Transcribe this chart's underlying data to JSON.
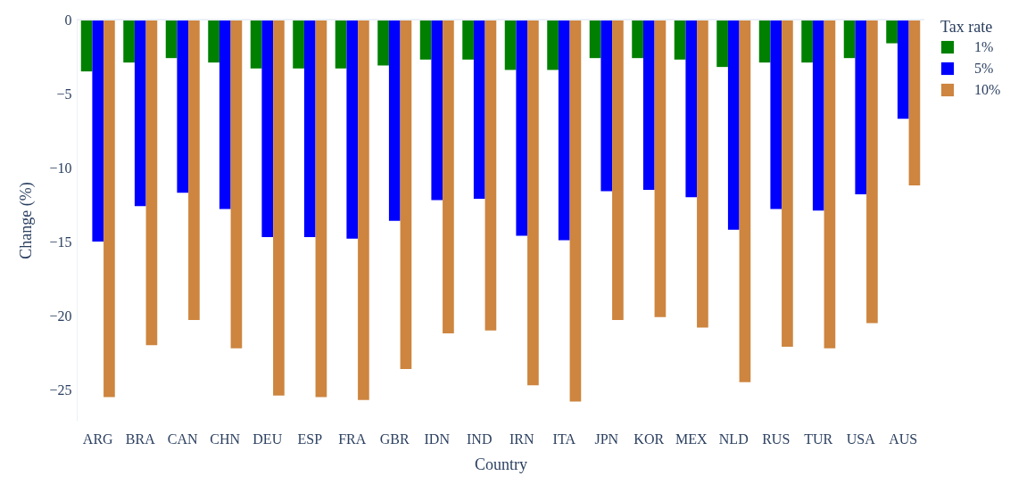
{
  "chart_data": {
    "type": "bar",
    "xlabel": "Country",
    "ylabel": "Change (%)",
    "legend_title": "Tax rate",
    "categories": [
      "ARG",
      "BRA",
      "CAN",
      "CHN",
      "DEU",
      "ESP",
      "FRA",
      "GBR",
      "IDN",
      "IND",
      "IRN",
      "ITA",
      "JPN",
      "KOR",
      "MEX",
      "NLD",
      "RUS",
      "TUR",
      "USA",
      "AUS"
    ],
    "series": [
      {
        "name": "1%",
        "color": "#008000",
        "values": [
          -3.5,
          -2.9,
          -2.6,
          -2.9,
          -3.3,
          -3.3,
          -3.3,
          -3.1,
          -2.7,
          -2.7,
          -3.4,
          -3.4,
          -2.6,
          -2.6,
          -2.7,
          -3.2,
          -2.9,
          -2.9,
          -2.6,
          -1.6
        ]
      },
      {
        "name": "5%",
        "color": "#0000ff",
        "values": [
          -15.0,
          -12.6,
          -11.7,
          -12.8,
          -14.7,
          -14.7,
          -14.8,
          -13.6,
          -12.2,
          -12.1,
          -14.6,
          -14.9,
          -11.6,
          -11.5,
          -12.0,
          -14.2,
          -12.8,
          -12.9,
          -11.8,
          -6.7
        ]
      },
      {
        "name": "10%",
        "color": "#cd853f",
        "values": [
          -25.5,
          -22.0,
          -20.3,
          -22.2,
          -25.4,
          -25.5,
          -25.7,
          -23.6,
          -21.2,
          -21.0,
          -24.7,
          -25.8,
          -20.3,
          -20.1,
          -20.8,
          -24.5,
          -22.1,
          -22.2,
          -20.5,
          -11.2
        ]
      }
    ],
    "ylim": [
      -27.1,
      0
    ],
    "yticks": [
      -25,
      -20,
      -15,
      -10,
      -5,
      0
    ],
    "grid": false,
    "legend": "top right"
  }
}
